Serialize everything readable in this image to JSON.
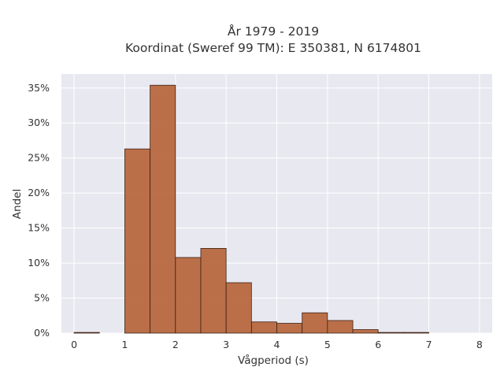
{
  "chart_data": {
    "type": "bar",
    "title_lines": [
      "År 1979 - 2019",
      "Koordinat (Sweref 99 TM): E 350381, N 6174801"
    ],
    "xlabel": "Vågperiod (s)",
    "ylabel": "Andel",
    "xlim": [
      -0.25,
      8.25
    ],
    "ylim": [
      0,
      0.37
    ],
    "x_ticks": [
      0,
      1,
      2,
      3,
      4,
      5,
      6,
      7,
      8
    ],
    "y_ticks": [
      0,
      0.05,
      0.1,
      0.15,
      0.2,
      0.25,
      0.3,
      0.35
    ],
    "y_tick_labels": [
      "0%",
      "5%",
      "10%",
      "15%",
      "20%",
      "25%",
      "30%",
      "35%"
    ],
    "bin_width": 0.5,
    "bin_starts": [
      0,
      0.5,
      1,
      1.5,
      2,
      2.5,
      3,
      3.5,
      4,
      4.5,
      5,
      5.5,
      6,
      6.5
    ],
    "values": [
      0.001,
      0,
      0.263,
      0.354,
      0.108,
      0.121,
      0.072,
      0.016,
      0.014,
      0.029,
      0.018,
      0.005,
      0.001,
      0.001
    ],
    "bar_color": "#b5643a",
    "bar_edge_color": "#3d2216",
    "plot_background": "#e8e8f0",
    "grid": true
  }
}
